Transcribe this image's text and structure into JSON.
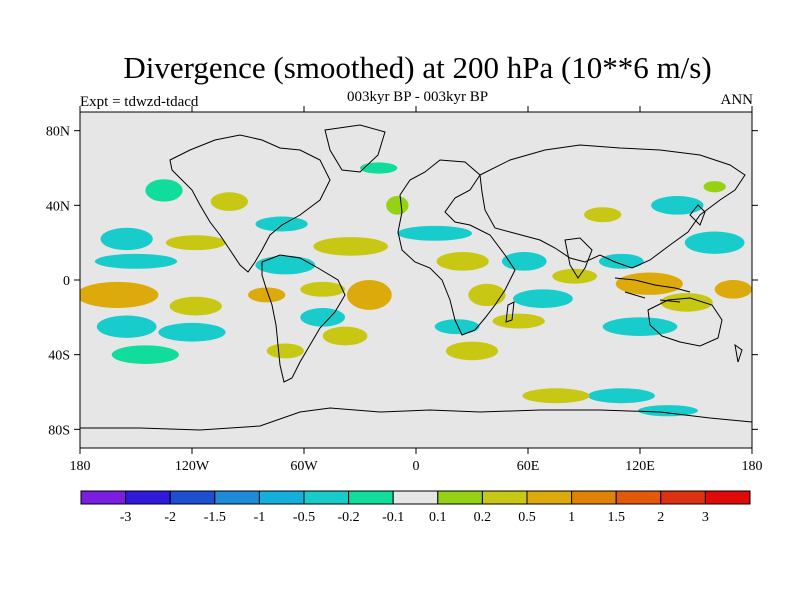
{
  "header": {
    "title": "Divergence (smoothed) at 200 hPa (10**6 m/s)",
    "subtitle": "003kyr BP - 003kyr BP",
    "experiment": "Expt = tdwzd-tdacd",
    "season": "ANN"
  },
  "map": {
    "projection": "cylindrical-equidistant",
    "lon_range": [
      -180,
      180
    ],
    "lat_range": [
      -90,
      90
    ],
    "lat_ticks": [
      {
        "value": 80,
        "label": "80N"
      },
      {
        "value": 40,
        "label": "40N"
      },
      {
        "value": 0,
        "label": "0"
      },
      {
        "value": -40,
        "label": "40S"
      },
      {
        "value": -80,
        "label": "80S"
      }
    ],
    "lon_ticks": [
      {
        "value": -180,
        "label": "180"
      },
      {
        "value": -120,
        "label": "120W"
      },
      {
        "value": -60,
        "label": "60W"
      },
      {
        "value": 0,
        "label": "0"
      },
      {
        "value": 60,
        "label": "60E"
      },
      {
        "value": 120,
        "label": "120E"
      },
      {
        "value": 180,
        "label": "180"
      }
    ],
    "background_color": "#e6e6e6"
  },
  "colorbar": {
    "colors": [
      "#7a1ee0",
      "#2f1adc",
      "#1e4fd0",
      "#1e8ad8",
      "#14b0dc",
      "#18cccc",
      "#10dc9c",
      "#e6e6e6",
      "#96d214",
      "#c8c814",
      "#dcaa0a",
      "#e08208",
      "#e05a0a",
      "#dc3212",
      "#e00a0a"
    ],
    "labels": [
      "-3",
      "-2",
      "-1.5",
      "-1",
      "-0.5",
      "-0.2",
      "-0.1",
      "0.1",
      "0.2",
      "0.5",
      "1",
      "1.5",
      "2",
      "3"
    ]
  },
  "field_blobs": [
    {
      "lon": -155,
      "lat": 22,
      "rx": 14,
      "ry": 6,
      "level": 5
    },
    {
      "lon": -118,
      "lat": 20,
      "rx": 16,
      "ry": 4,
      "level": 9
    },
    {
      "lon": -150,
      "lat": 10,
      "rx": 22,
      "ry": 4,
      "level": 5
    },
    {
      "lon": -160,
      "lat": -8,
      "rx": 22,
      "ry": 7,
      "level": 10
    },
    {
      "lon": -118,
      "lat": -14,
      "rx": 14,
      "ry": 5,
      "level": 9
    },
    {
      "lon": -155,
      "lat": -25,
      "rx": 16,
      "ry": 6,
      "level": 5
    },
    {
      "lon": -120,
      "lat": -28,
      "rx": 18,
      "ry": 5,
      "level": 5
    },
    {
      "lon": -145,
      "lat": -40,
      "rx": 18,
      "ry": 5,
      "level": 6
    },
    {
      "lon": -135,
      "lat": 48,
      "rx": 10,
      "ry": 6,
      "level": 6
    },
    {
      "lon": -100,
      "lat": 42,
      "rx": 10,
      "ry": 5,
      "level": 9
    },
    {
      "lon": -72,
      "lat": 30,
      "rx": 14,
      "ry": 4,
      "level": 5
    },
    {
      "lon": -35,
      "lat": 18,
      "rx": 20,
      "ry": 5,
      "level": 9
    },
    {
      "lon": -70,
      "lat": 8,
      "rx": 16,
      "ry": 5,
      "level": 5
    },
    {
      "lon": -50,
      "lat": -5,
      "rx": 12,
      "ry": 4,
      "level": 9
    },
    {
      "lon": -80,
      "lat": -8,
      "rx": 10,
      "ry": 4,
      "level": 10
    },
    {
      "lon": -25,
      "lat": -8,
      "rx": 12,
      "ry": 8,
      "level": 10
    },
    {
      "lon": -50,
      "lat": -20,
      "rx": 12,
      "ry": 5,
      "level": 5
    },
    {
      "lon": -38,
      "lat": -30,
      "rx": 12,
      "ry": 5,
      "level": 9
    },
    {
      "lon": -70,
      "lat": -38,
      "rx": 10,
      "ry": 4,
      "level": 9
    },
    {
      "lon": -10,
      "lat": 40,
      "rx": 6,
      "ry": 5,
      "level": 8
    },
    {
      "lon": -20,
      "lat": 60,
      "rx": 10,
      "ry": 3,
      "level": 6
    },
    {
      "lon": 10,
      "lat": 25,
      "rx": 20,
      "ry": 4,
      "level": 5
    },
    {
      "lon": 25,
      "lat": 10,
      "rx": 14,
      "ry": 5,
      "level": 9
    },
    {
      "lon": 38,
      "lat": -8,
      "rx": 10,
      "ry": 6,
      "level": 9
    },
    {
      "lon": 22,
      "lat": -25,
      "rx": 12,
      "ry": 4,
      "level": 5
    },
    {
      "lon": 30,
      "lat": -38,
      "rx": 14,
      "ry": 5,
      "level": 9
    },
    {
      "lon": 58,
      "lat": 10,
      "rx": 12,
      "ry": 5,
      "level": 5
    },
    {
      "lon": 68,
      "lat": -10,
      "rx": 16,
      "ry": 5,
      "level": 5
    },
    {
      "lon": 55,
      "lat": -22,
      "rx": 14,
      "ry": 4,
      "level": 9
    },
    {
      "lon": 85,
      "lat": 2,
      "rx": 12,
      "ry": 4,
      "level": 9
    },
    {
      "lon": 110,
      "lat": 10,
      "rx": 12,
      "ry": 4,
      "level": 5
    },
    {
      "lon": 125,
      "lat": -2,
      "rx": 18,
      "ry": 6,
      "level": 10
    },
    {
      "lon": 145,
      "lat": -12,
      "rx": 14,
      "ry": 5,
      "level": 9
    },
    {
      "lon": 120,
      "lat": -25,
      "rx": 20,
      "ry": 5,
      "level": 5
    },
    {
      "lon": 160,
      "lat": 20,
      "rx": 16,
      "ry": 6,
      "level": 5
    },
    {
      "lon": 140,
      "lat": 40,
      "rx": 14,
      "ry": 5,
      "level": 5
    },
    {
      "lon": 100,
      "lat": 35,
      "rx": 10,
      "ry": 4,
      "level": 9
    },
    {
      "lon": 160,
      "lat": 50,
      "rx": 6,
      "ry": 3,
      "level": 8
    },
    {
      "lon": 170,
      "lat": -5,
      "rx": 10,
      "ry": 5,
      "level": 10
    },
    {
      "lon": 110,
      "lat": -62,
      "rx": 18,
      "ry": 4,
      "level": 5
    },
    {
      "lon": 75,
      "lat": -62,
      "rx": 18,
      "ry": 4,
      "level": 9
    },
    {
      "lon": 135,
      "lat": -70,
      "rx": 16,
      "ry": 3,
      "level": 5
    }
  ]
}
